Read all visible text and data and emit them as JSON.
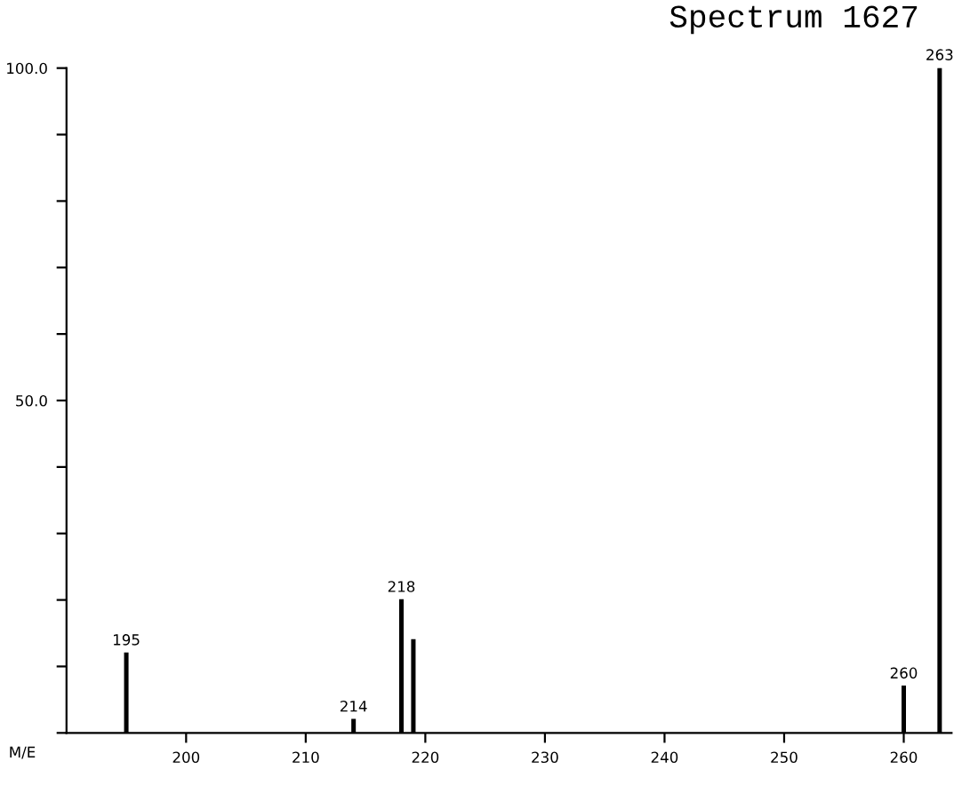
{
  "chart_data": {
    "type": "bar",
    "title": "Spectrum 1627",
    "xlabel": "M/E",
    "x": [
      195,
      214,
      218,
      219,
      260,
      263
    ],
    "values": [
      12,
      2,
      20,
      14,
      7,
      100
    ],
    "annotations": [
      {
        "text": "195",
        "x": 195,
        "y": 12
      },
      {
        "text": "214",
        "x": 214,
        "y": 2
      },
      {
        "text": "218",
        "x": 218,
        "y": 20
      },
      {
        "text": "260",
        "x": 260,
        "y": 7
      },
      {
        "text": "263",
        "x": 263,
        "y": 100
      }
    ],
    "color": "#000000",
    "xlim": [
      190,
      264
    ],
    "xticks": [
      200,
      210,
      220,
      230,
      240,
      250,
      260
    ],
    "ylim": [
      0,
      100
    ],
    "yticks": [
      {
        "value": 0,
        "label": null
      },
      {
        "value": 10,
        "label": null
      },
      {
        "value": 20,
        "label": null
      },
      {
        "value": 30,
        "label": null
      },
      {
        "value": 40,
        "label": null
      },
      {
        "value": 50,
        "label": "50.0"
      },
      {
        "value": 60,
        "label": null
      },
      {
        "value": 70,
        "label": null
      },
      {
        "value": 80,
        "label": null
      },
      {
        "value": 90,
        "label": null
      },
      {
        "value": 100,
        "label": "100.0"
      }
    ],
    "grid": false
  }
}
